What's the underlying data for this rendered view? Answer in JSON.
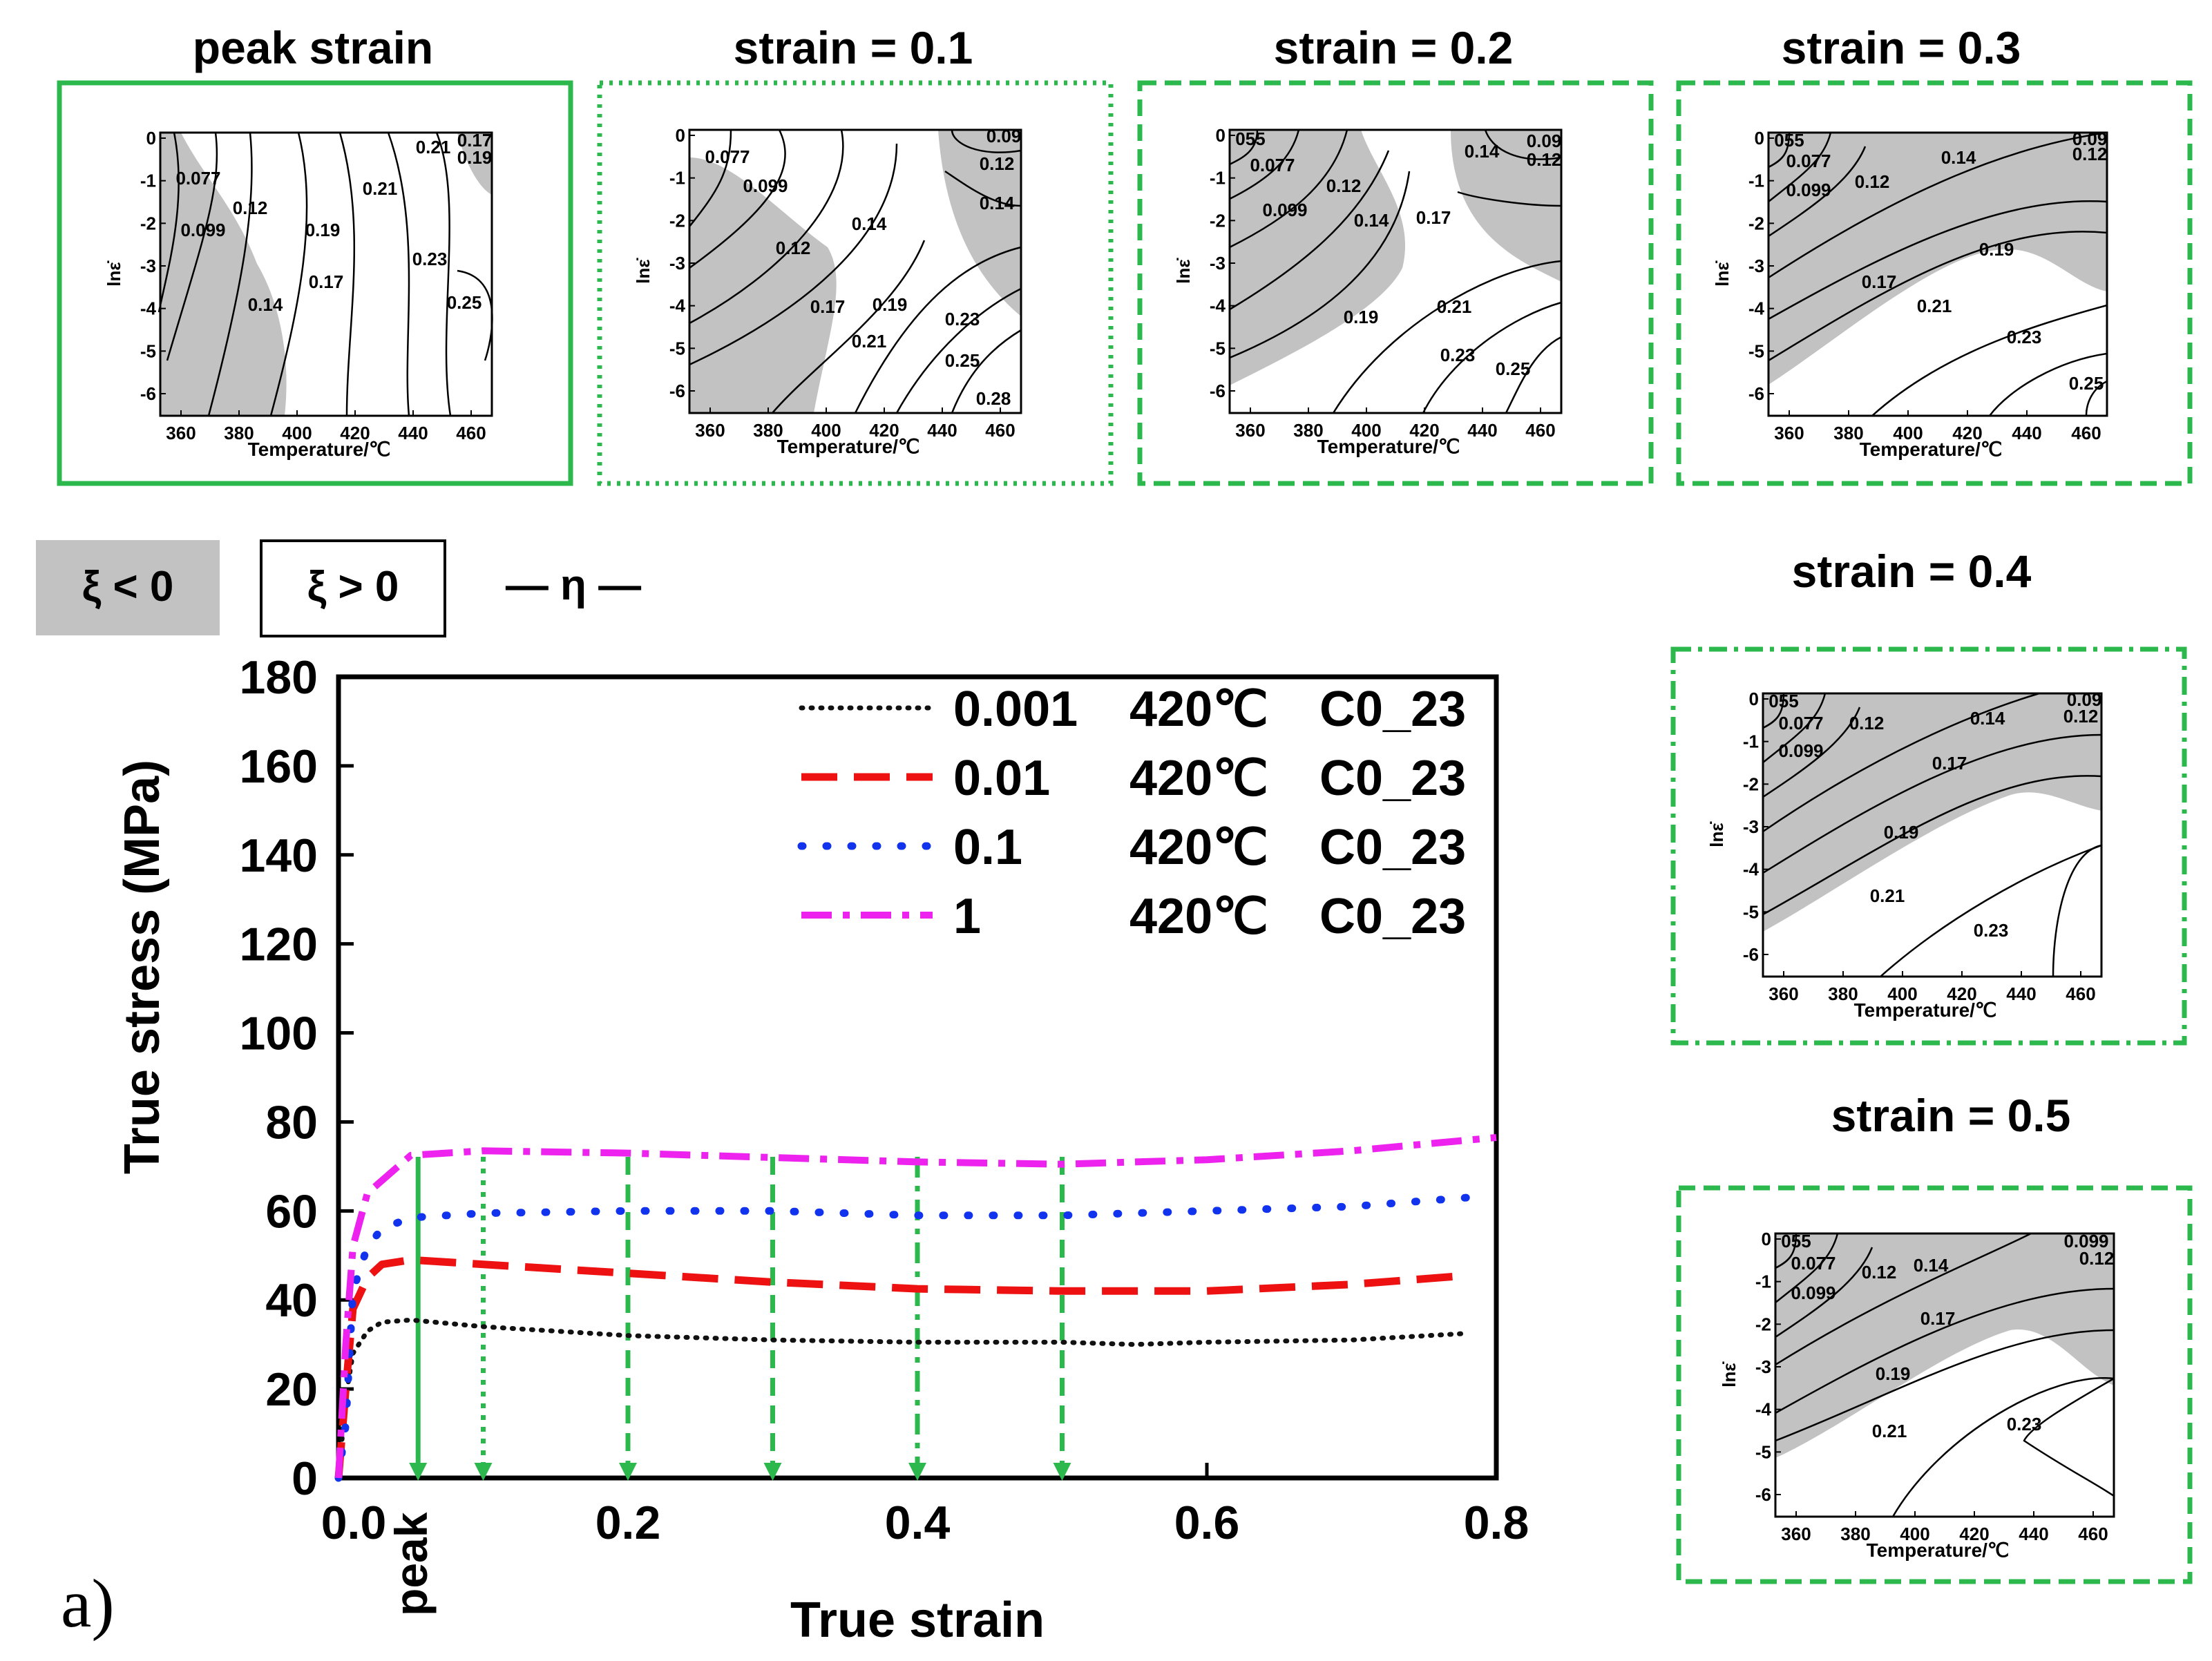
{
  "colors": {
    "frame_green": "#2db84d",
    "shade": "#c2c2c2",
    "axis": "#000000",
    "series": [
      "#111111",
      "#ee1111",
      "#1133ee",
      "#ee22ee"
    ]
  },
  "panel_label": "a)",
  "legend_key": {
    "neg": "ξ < 0",
    "pos": "ξ > 0",
    "eta": "— η —"
  },
  "map_axes": {
    "ylabel": "lnε̇",
    "xlabel": "Temperature/℃",
    "yticks": [
      "0",
      "-1",
      "-2",
      "-3",
      "-4",
      "-5",
      "-6"
    ],
    "xticks": [
      "360",
      "380",
      "400",
      "420",
      "440",
      "460"
    ]
  },
  "maps": [
    {
      "title": "peak strain",
      "border": "solid",
      "labels": [
        "0.077",
        "0.099",
        "0.12",
        "0.14",
        "0.17",
        "0.19",
        "0.21",
        "0.21",
        "0.17",
        "0.19",
        "0.23",
        "0.25"
      ]
    },
    {
      "title": "strain = 0.1",
      "border": "dotted",
      "labels": [
        "0.077",
        "0.099",
        "0.12",
        "0.14",
        "0.17",
        "0.19",
        "0.21",
        "0.23",
        "0.25",
        "0.28",
        "0.09",
        "0.12",
        "0.14"
      ]
    },
    {
      "title": "strain = 0.2",
      "border": "dashed",
      "labels": [
        "055",
        "0.077",
        "0.099",
        "0.12",
        "0.14",
        "0.17",
        "0.19",
        "0.21",
        "0.23",
        "0.25",
        "0.14",
        "0.09",
        "0.12"
      ]
    },
    {
      "title": "strain = 0.3",
      "border": "dashed",
      "labels": [
        "055",
        "0.077",
        "0.099",
        "0.12",
        "0.14",
        "0.09",
        "0.12",
        "0.17",
        "0.19",
        "0.21",
        "0.23",
        "0.25"
      ]
    },
    {
      "title": "strain = 0.4",
      "border": "dashdot",
      "labels": [
        "055",
        "0.077",
        "0.099",
        "0.12",
        "0.14",
        "0.12",
        "0.09",
        "0.17",
        "0.19",
        "0.21",
        "0.23"
      ]
    },
    {
      "title": "strain = 0.5",
      "border": "dashed",
      "labels": [
        "055",
        "0.077",
        "0.099",
        "0.12",
        "0.14",
        "0.099",
        "0.12",
        "0.17",
        "0.19",
        "0.21",
        "0.23"
      ]
    }
  ],
  "chart_data": {
    "type": "line",
    "xlabel": "True strain",
    "ylabel": "True stress (MPa)",
    "xlim": [
      0,
      0.8
    ],
    "ylim": [
      0,
      180
    ],
    "xticks": [
      "0.0",
      "0.2",
      "0.4",
      "0.6",
      "0.8"
    ],
    "yticks": [
      "0",
      "20",
      "40",
      "60",
      "80",
      "100",
      "120",
      "140",
      "160",
      "180"
    ],
    "peak_label": "peak",
    "legend": {
      "temperature": "420℃",
      "material": "C0_23"
    },
    "series": [
      {
        "name": "0.001",
        "style": "dotted",
        "x": [
          0,
          0.005,
          0.01,
          0.02,
          0.03,
          0.05,
          0.1,
          0.2,
          0.3,
          0.4,
          0.5,
          0.55,
          0.6,
          0.7,
          0.78
        ],
        "y": [
          0,
          18,
          28,
          33,
          35,
          35.5,
          34,
          32,
          31,
          30.5,
          30.5,
          30,
          30.5,
          31,
          32.5
        ]
      },
      {
        "name": "0.01",
        "style": "dashed",
        "x": [
          0,
          0.005,
          0.01,
          0.02,
          0.03,
          0.05,
          0.1,
          0.2,
          0.3,
          0.4,
          0.5,
          0.6,
          0.7,
          0.78
        ],
        "y": [
          0,
          20,
          38,
          45,
          48,
          49,
          48,
          46,
          44,
          42.5,
          42,
          42,
          43.5,
          45.5
        ]
      },
      {
        "name": "0.1",
        "style": "dotted-spaced",
        "x": [
          0,
          0.005,
          0.01,
          0.02,
          0.03,
          0.05,
          0.1,
          0.2,
          0.3,
          0.4,
          0.5,
          0.6,
          0.7,
          0.78
        ],
        "y": [
          0,
          12,
          42,
          52,
          56,
          58.5,
          59.5,
          60,
          60,
          59,
          59,
          60,
          61,
          63
        ]
      },
      {
        "name": "1",
        "style": "dashdot",
        "x": [
          0,
          0.005,
          0.01,
          0.015,
          0.02,
          0.05,
          0.1,
          0.2,
          0.3,
          0.4,
          0.5,
          0.6,
          0.7,
          0.8
        ],
        "y": [
          0,
          30,
          52,
          58,
          64,
          72.5,
          73.5,
          73,
          72,
          71,
          70.5,
          71.5,
          73.5,
          76.5
        ]
      }
    ],
    "markers": [
      {
        "x": 0.055,
        "label": "peak strain",
        "style": "solid"
      },
      {
        "x": 0.1,
        "label": "0.1",
        "style": "dotted"
      },
      {
        "x": 0.2,
        "label": "0.2",
        "style": "dashed"
      },
      {
        "x": 0.3,
        "label": "0.3",
        "style": "dashed"
      },
      {
        "x": 0.4,
        "label": "0.4",
        "style": "dashdot"
      },
      {
        "x": 0.5,
        "label": "0.5",
        "style": "dashed"
      }
    ]
  }
}
